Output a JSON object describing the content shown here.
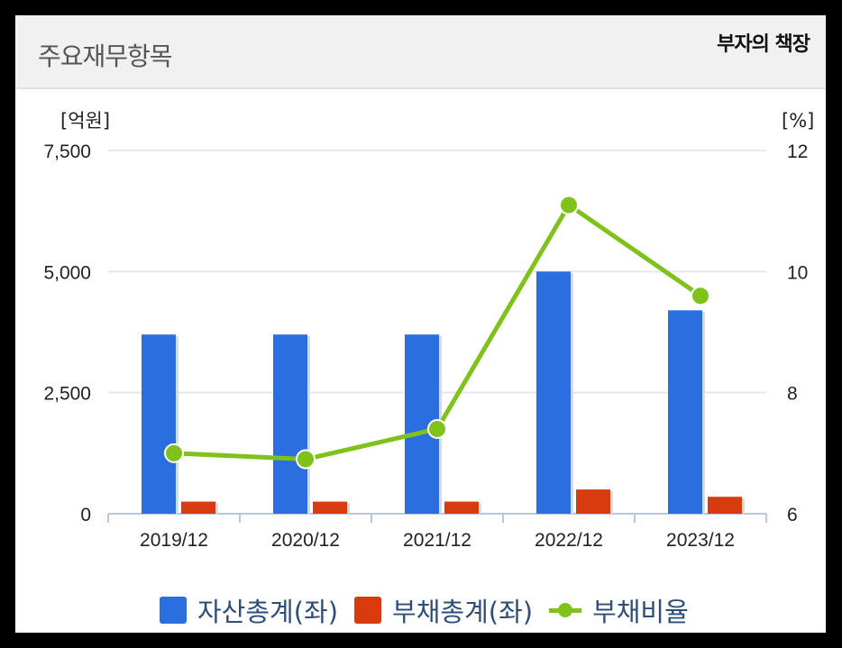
{
  "header": {
    "title": "주요재무항목",
    "brand": "부자의 책장"
  },
  "chart_data": {
    "type": "bar",
    "categories": [
      "2019/12",
      "2020/12",
      "2021/12",
      "2022/12",
      "2023/12"
    ],
    "series": [
      {
        "name": "자산총계(좌)",
        "type": "bar",
        "axis": "left",
        "color": "#2a6ee0",
        "values": [
          3700,
          3700,
          3700,
          5000,
          4200
        ]
      },
      {
        "name": "부채총계(좌)",
        "type": "bar",
        "axis": "left",
        "color": "#d83b0f",
        "values": [
          250,
          250,
          250,
          500,
          350
        ]
      },
      {
        "name": "부채비율",
        "type": "line",
        "axis": "right",
        "color": "#7ec21b",
        "values": [
          7.0,
          6.9,
          7.4,
          11.1,
          9.6
        ]
      }
    ],
    "ylabel_left": "[억원]",
    "ylabel_right": "[%]",
    "ylim_left": [
      0,
      7500
    ],
    "ylim_right": [
      6,
      12
    ],
    "yticks_left": [
      "0",
      "2,500",
      "5,000",
      "7,500"
    ],
    "yticks_right": [
      "6",
      "8",
      "10",
      "12"
    ],
    "grid": true,
    "legend_position": "bottom"
  }
}
